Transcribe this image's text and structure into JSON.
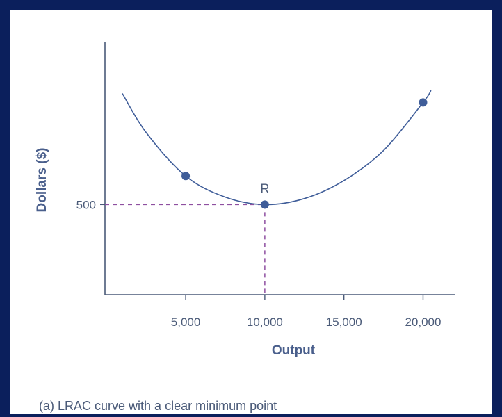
{
  "chart_data": {
    "type": "line",
    "xlabel": "Output",
    "ylabel": "Dollars ($)",
    "x_ticks": [
      5000,
      10000,
      15000,
      20000
    ],
    "x_tick_labels": [
      "5,000",
      "10,000",
      "15,000",
      "20,000"
    ],
    "y_ticks": [
      500
    ],
    "y_tick_labels": [
      "500"
    ],
    "series": [
      {
        "type": "curve",
        "x": [
          1000,
          2500,
          5000,
          7500,
          10000,
          12500,
          15000,
          17500,
          20000,
          20500
        ],
        "y": [
          870,
          740,
          595,
          525,
          500,
          520,
          580,
          680,
          840,
          880
        ]
      }
    ],
    "points": [
      {
        "x": 5000,
        "y": 595,
        "label": ""
      },
      {
        "x": 10000,
        "y": 500,
        "label": "R"
      },
      {
        "x": 20000,
        "y": 840,
        "label": ""
      }
    ],
    "reference_lines": {
      "x": 10000,
      "y": 500
    },
    "xlim": [
      -100,
      22000
    ],
    "ylim": [
      200,
      1040
    ],
    "colors": {
      "curve": "#3f5d99",
      "point": "#3f5d99",
      "dashed": "#8e4fa0",
      "axis": "#4a5a78"
    }
  },
  "caption": {
    "prefix": "(a)",
    "text": "LRAC curve with a clear minimum point"
  }
}
